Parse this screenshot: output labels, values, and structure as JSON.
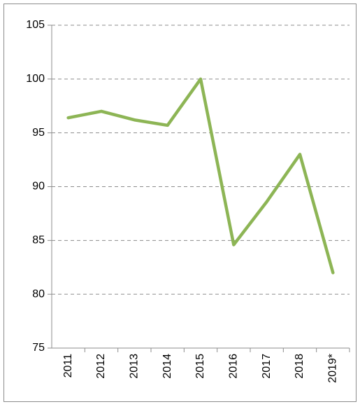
{
  "chart_data": {
    "type": "line",
    "categories": [
      "2011",
      "2012",
      "2013",
      "2014",
      "2015",
      "2016",
      "2017",
      "2018",
      "2019*"
    ],
    "series": [
      {
        "color": "#8db555",
        "values": [
          96.4,
          97.0,
          96.2,
          95.7,
          100,
          84.6,
          88.6,
          93.0,
          82.0
        ]
      }
    ],
    "ylim": [
      75,
      105
    ],
    "yticks": [
      75,
      80,
      85,
      90,
      95,
      100,
      105
    ],
    "grid": true
  }
}
